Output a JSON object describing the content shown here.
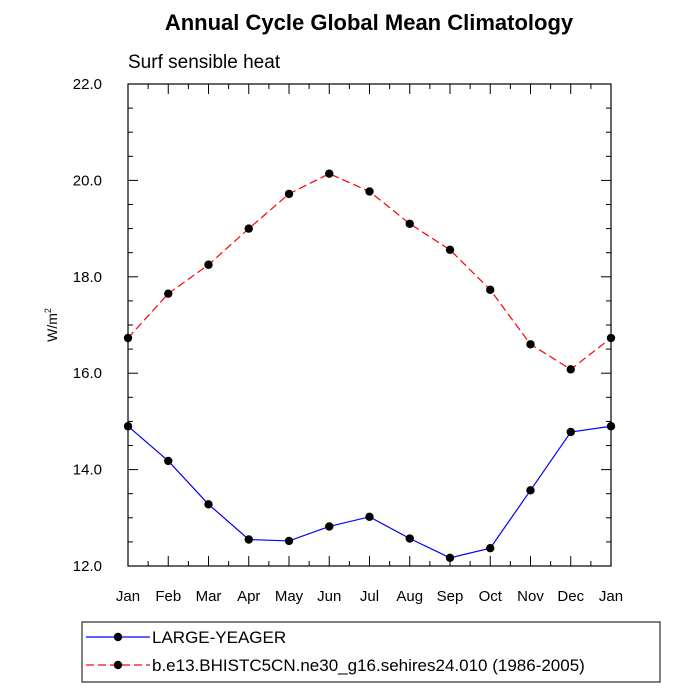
{
  "chart_data": {
    "type": "line",
    "title": "Annual Cycle Global Mean Climatology",
    "subtitle": "Surf sensible heat",
    "ylabel_base": "W/m",
    "ylabel_sup": "2",
    "xlabel": "",
    "categories": [
      "Jan",
      "Feb",
      "Mar",
      "Apr",
      "May",
      "Jun",
      "Jul",
      "Aug",
      "Sep",
      "Oct",
      "Nov",
      "Dec",
      "Jan"
    ],
    "ylim": [
      12.0,
      22.0
    ],
    "yticks": [
      12.0,
      14.0,
      16.0,
      18.0,
      20.0,
      22.0
    ],
    "ytick_labels": [
      "12.0",
      "14.0",
      "16.0",
      "18.0",
      "20.0",
      "22.0"
    ],
    "series": [
      {
        "name": "LARGE-YEAGER",
        "color": "#0000ff",
        "dash": "solid",
        "values": [
          14.9,
          14.18,
          13.28,
          12.55,
          12.52,
          12.82,
          13.02,
          12.57,
          12.17,
          12.37,
          13.57,
          14.78,
          14.9
        ]
      },
      {
        "name": "b.e13.BHISTC5CN.ne30_g16.sehires24.010 (1986-2005)",
        "color": "#ff0000",
        "dash": "dashed",
        "values": [
          16.73,
          17.65,
          18.25,
          19.0,
          19.72,
          20.14,
          19.77,
          19.1,
          18.56,
          17.73,
          16.6,
          16.08,
          16.73
        ]
      }
    ],
    "legend_position": "bottom"
  }
}
